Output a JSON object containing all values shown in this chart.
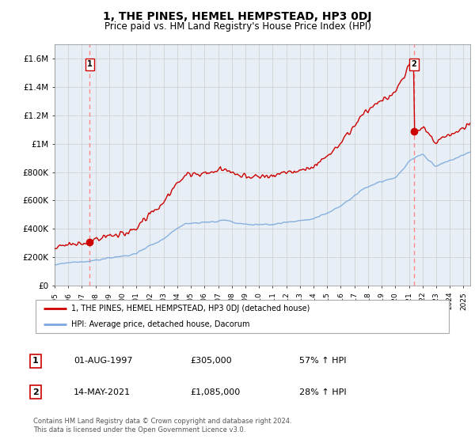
{
  "title": "1, THE PINES, HEMEL HEMPSTEAD, HP3 0DJ",
  "subtitle": "Price paid vs. HM Land Registry's House Price Index (HPI)",
  "ylabel_ticks": [
    "£0",
    "£200K",
    "£400K",
    "£600K",
    "£800K",
    "£1M",
    "£1.2M",
    "£1.4M",
    "£1.6M"
  ],
  "ytick_values": [
    0,
    200000,
    400000,
    600000,
    800000,
    1000000,
    1200000,
    1400000,
    1600000
  ],
  "ylim": [
    0,
    1700000
  ],
  "xlim_start": 1995.0,
  "xlim_end": 2025.5,
  "sale1_year": 1997.583,
  "sale1_price": 305000,
  "sale2_year": 2021.37,
  "sale2_price": 1085000,
  "line1_color": "#cc0000",
  "line2_color": "#7aaadd",
  "dot_color": "#cc0000",
  "dashed_color": "#ff8888",
  "grid_color": "#cccccc",
  "background_color": "#e8eef5",
  "legend_label1": "1, THE PINES, HEMEL HEMPSTEAD, HP3 0DJ (detached house)",
  "legend_label2": "HPI: Average price, detached house, Dacorum",
  "footer": "Contains HM Land Registry data © Crown copyright and database right 2024.\nThis data is licensed under the Open Government Licence v3.0.",
  "table_rows": [
    {
      "num": "1",
      "date": "01-AUG-1997",
      "price": "£305,000",
      "pct": "57% ↑ HPI"
    },
    {
      "num": "2",
      "date": "14-MAY-2021",
      "price": "£1,085,000",
      "pct": "28% ↑ HPI"
    }
  ]
}
